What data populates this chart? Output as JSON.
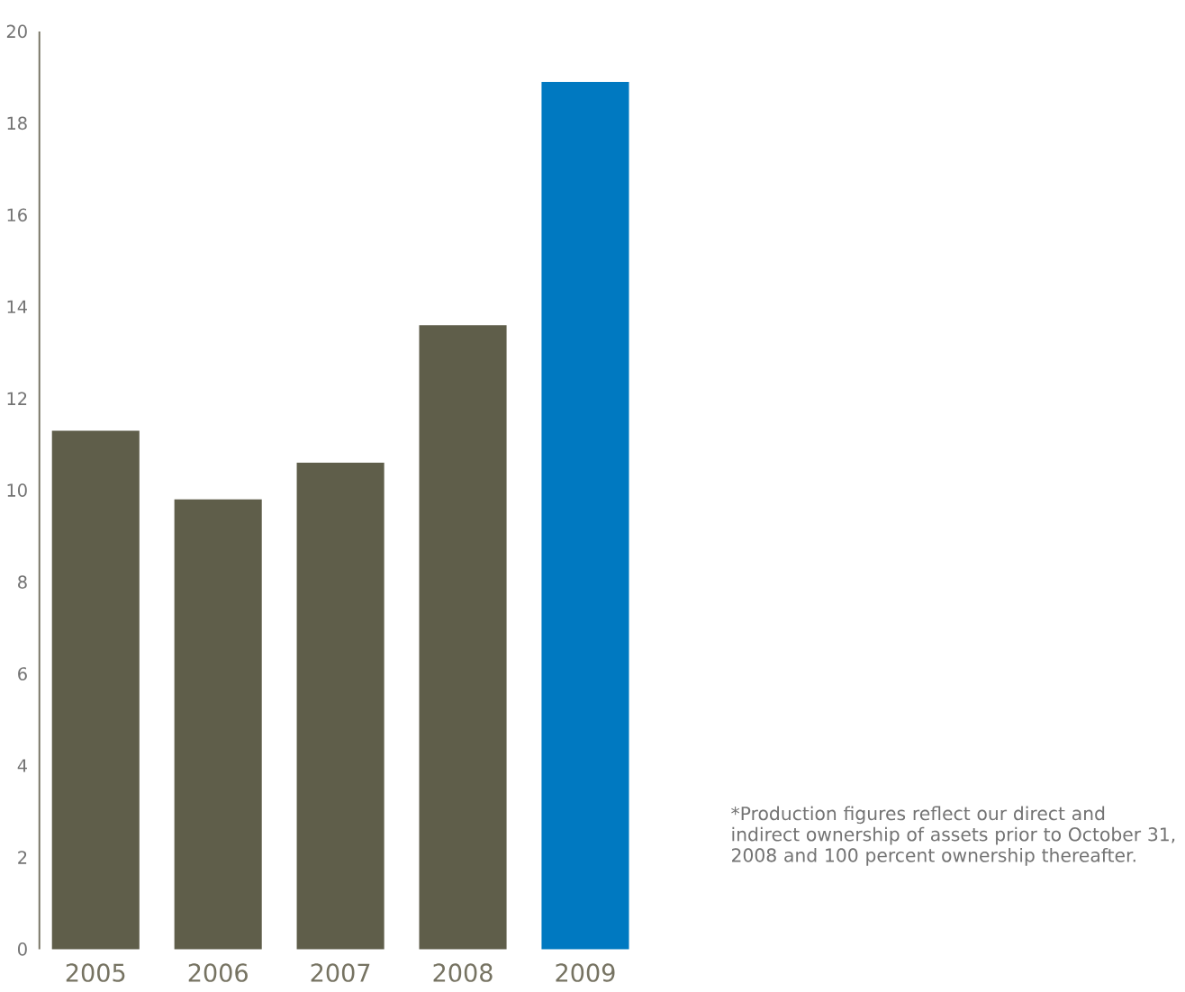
{
  "chart_data": {
    "type": "bar",
    "categories": [
      "2005",
      "2006",
      "2007",
      "2008",
      "2009"
    ],
    "values": [
      11.3,
      9.8,
      10.6,
      13.6,
      18.9
    ],
    "colors": [
      "#5f5e4a",
      "#5f5e4a",
      "#5f5e4a",
      "#5f5e4a",
      "#0079c1"
    ],
    "ylim": [
      0,
      20
    ],
    "yticks": [
      0,
      2,
      4,
      6,
      8,
      10,
      12,
      14,
      16,
      18,
      20
    ],
    "grid": false,
    "annotations": [
      "*Production figures reflect our direct and indirect ownership of assets prior to October 31, 2008 and 100 percent ownership thereafter."
    ]
  }
}
